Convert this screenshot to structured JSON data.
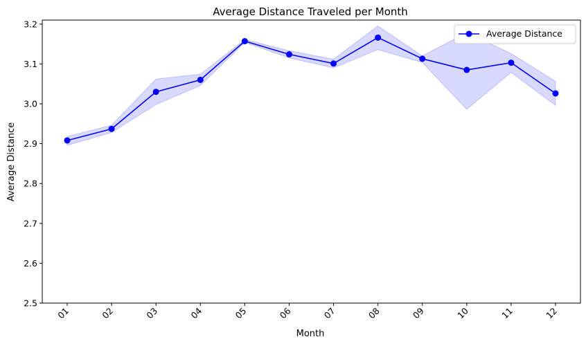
{
  "chart_data": {
    "type": "line",
    "title": "Average Distance Traveled per Month",
    "xlabel": "Month",
    "ylabel": "Average Distance",
    "categories": [
      "01",
      "02",
      "03",
      "04",
      "05",
      "06",
      "07",
      "08",
      "09",
      "10",
      "11",
      "12"
    ],
    "series": [
      {
        "name": "Average Distance",
        "color": "#0000ff",
        "values": [
          2.908,
          2.937,
          3.03,
          3.06,
          3.157,
          3.124,
          3.101,
          3.166,
          3.113,
          3.085,
          3.103,
          3.026
        ]
      }
    ],
    "band": {
      "color": "#0000ff",
      "upper": [
        2.918,
        2.946,
        3.062,
        3.074,
        3.161,
        3.133,
        3.112,
        3.195,
        3.12,
        3.178,
        3.126,
        3.056
      ],
      "lower": [
        2.896,
        2.928,
        2.998,
        3.046,
        3.154,
        3.115,
        3.09,
        3.136,
        3.104,
        2.986,
        3.079,
        2.996
      ]
    },
    "ylim": [
      2.5,
      3.21
    ],
    "yticks": [
      "2.5",
      "2.6",
      "2.7",
      "2.8",
      "2.9",
      "3.0",
      "3.1",
      "3.2"
    ],
    "grid": false,
    "legend": "top-right"
  }
}
